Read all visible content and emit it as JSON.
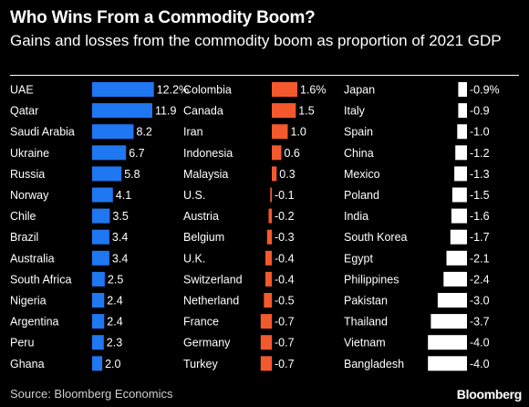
{
  "title": "Who Wins From a Commodity Boom?",
  "subtitle": "Gains and losses from the commodity boom as proportion of 2021 GDP",
  "source": "Source: Bloomberg Economics",
  "brand": "Bloomberg",
  "colors": {
    "background": "#000000",
    "text": "#ffffff",
    "panel_1": "#1f77f2",
    "panel_2": "#f4592d",
    "panel_3": "#ffffff"
  },
  "chart_data": {
    "type": "bar",
    "orientation": "horizontal",
    "panels": [
      {
        "color_key": "panel_1",
        "categories": [
          "UAE",
          "Qatar",
          "Saudi Arabia",
          "Ukraine",
          "Russia",
          "Norway",
          "Chile",
          "Brazil",
          "Australia",
          "South Africa",
          "Nigeria",
          "Argentina",
          "Peru",
          "Ghana"
        ],
        "values": [
          12.2,
          11.9,
          8.2,
          6.7,
          5.8,
          4.1,
          3.5,
          3.4,
          3.4,
          2.5,
          2.4,
          2.4,
          2.3,
          2.0
        ],
        "labels": [
          "12.2%",
          "11.9",
          "8.2",
          "6.7",
          "5.8",
          "4.1",
          "3.5",
          "3.4",
          "3.4",
          "2.5",
          "2.4",
          "2.4",
          "2.3",
          "2.0"
        ]
      },
      {
        "color_key": "panel_2",
        "categories": [
          "Colombia",
          "Canada",
          "Iran",
          "Indonesia",
          "Malaysia",
          "U.S.",
          "Austria",
          "Belgium",
          "U.K.",
          "Switzerland",
          "Netherland",
          "France",
          "Germany",
          "Turkey"
        ],
        "values": [
          1.6,
          1.5,
          1.0,
          0.6,
          0.3,
          -0.1,
          -0.2,
          -0.3,
          -0.4,
          -0.4,
          -0.5,
          -0.7,
          -0.7,
          -0.7
        ],
        "labels": [
          "1.6%",
          "1.5",
          "1.0",
          "0.6",
          "0.3",
          "-0.1",
          "-0.2",
          "-0.3",
          "-0.4",
          "-0.4",
          "-0.5",
          "-0.7",
          "-0.7",
          "-0.7"
        ]
      },
      {
        "color_key": "panel_3",
        "categories": [
          "Japan",
          "Italy",
          "Spain",
          "China",
          "Mexico",
          "Poland",
          "India",
          "South Korea",
          "Egypt",
          "Philippines",
          "Pakistan",
          "Thailand",
          "Vietnam",
          "Bangladesh"
        ],
        "values": [
          -0.9,
          -0.9,
          -1.0,
          -1.2,
          -1.3,
          -1.5,
          -1.6,
          -1.7,
          -2.1,
          -2.4,
          -3.0,
          -3.7,
          -4.0,
          -4.0
        ],
        "labels": [
          "-0.9%",
          "-0.9",
          "-1.0",
          "-1.2",
          "-1.3",
          "-1.5",
          "-1.6",
          "-1.7",
          "-2.1",
          "-2.4",
          "-3.0",
          "-3.7",
          "-4.0",
          "-4.0"
        ]
      }
    ]
  }
}
